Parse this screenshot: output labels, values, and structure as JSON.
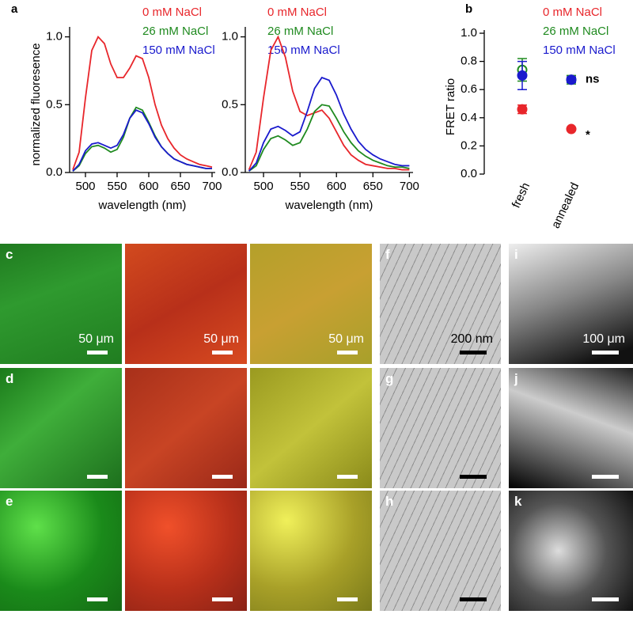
{
  "panels": [
    "a",
    "b"
  ],
  "chart_data": [
    {
      "type": "line",
      "xlabel": "wavelength (nm)",
      "ylabel": "normalized fluoresence",
      "x": [
        480,
        490,
        500,
        510,
        520,
        530,
        540,
        550,
        560,
        570,
        580,
        590,
        600,
        610,
        620,
        630,
        640,
        650,
        660,
        670,
        680,
        690,
        700
      ],
      "xlim": [
        475,
        705
      ],
      "xticks": [
        500,
        550,
        600,
        650,
        700
      ],
      "ylim": [
        0,
        1.05
      ],
      "yticks": [
        {
          "value": 0,
          "label": "0.0"
        },
        0.5,
        {
          "value": 1,
          "label": "1.0"
        }
      ],
      "series": [
        {
          "name": "0 mM NaCl",
          "color": "#e8262b",
          "values": [
            0.02,
            0.15,
            0.55,
            0.9,
            1.0,
            0.95,
            0.8,
            0.7,
            0.7,
            0.77,
            0.86,
            0.84,
            0.7,
            0.5,
            0.35,
            0.25,
            0.18,
            0.13,
            0.1,
            0.08,
            0.06,
            0.05,
            0.04
          ]
        },
        {
          "name": "26 mM NaCl",
          "color": "#1f8a1f",
          "values": [
            0.01,
            0.05,
            0.14,
            0.19,
            0.2,
            0.18,
            0.15,
            0.17,
            0.26,
            0.4,
            0.48,
            0.46,
            0.37,
            0.27,
            0.19,
            0.14,
            0.1,
            0.08,
            0.06,
            0.05,
            0.04,
            0.03,
            0.03
          ]
        },
        {
          "name": "150 mM NaCl",
          "color": "#1a1acd",
          "values": [
            0.01,
            0.06,
            0.16,
            0.21,
            0.22,
            0.2,
            0.18,
            0.2,
            0.28,
            0.4,
            0.46,
            0.44,
            0.36,
            0.26,
            0.19,
            0.14,
            0.1,
            0.08,
            0.06,
            0.05,
            0.04,
            0.03,
            0.03
          ]
        }
      ]
    },
    {
      "type": "line",
      "xlabel": "wavelength (nm)",
      "x": [
        480,
        490,
        500,
        510,
        520,
        530,
        540,
        550,
        560,
        570,
        580,
        590,
        600,
        610,
        620,
        630,
        640,
        650,
        660,
        670,
        680,
        690,
        700
      ],
      "xlim": [
        475,
        705
      ],
      "xticks": [
        500,
        550,
        600,
        650,
        700
      ],
      "ylim": [
        0,
        1.05
      ],
      "yticks": [
        {
          "value": 0,
          "label": "0.0"
        },
        0.5,
        {
          "value": 1,
          "label": "1.0"
        }
      ],
      "series": [
        {
          "name": "0 mM NaCl",
          "color": "#e8262b",
          "values": [
            0.02,
            0.15,
            0.55,
            0.9,
            1.0,
            0.85,
            0.6,
            0.45,
            0.42,
            0.44,
            0.46,
            0.4,
            0.3,
            0.2,
            0.13,
            0.09,
            0.06,
            0.05,
            0.04,
            0.03,
            0.03,
            0.02,
            0.02
          ]
        },
        {
          "name": "26 mM NaCl",
          "color": "#1f8a1f",
          "values": [
            0.01,
            0.05,
            0.17,
            0.25,
            0.27,
            0.24,
            0.2,
            0.22,
            0.32,
            0.45,
            0.5,
            0.49,
            0.4,
            0.3,
            0.22,
            0.16,
            0.12,
            0.09,
            0.07,
            0.05,
            0.04,
            0.04,
            0.03
          ]
        },
        {
          "name": "150 mM NaCl",
          "color": "#1a1acd",
          "values": [
            0.01,
            0.07,
            0.22,
            0.32,
            0.34,
            0.31,
            0.27,
            0.3,
            0.45,
            0.62,
            0.7,
            0.68,
            0.57,
            0.43,
            0.32,
            0.23,
            0.17,
            0.13,
            0.1,
            0.08,
            0.06,
            0.05,
            0.05
          ]
        }
      ]
    },
    {
      "type": "scatter",
      "ylabel": "FRET ratio",
      "categories": [
        "fresh",
        "annealed"
      ],
      "ylim": [
        0,
        1
      ],
      "yticks": [
        {
          "value": 0,
          "label": "0.0"
        },
        0.2,
        0.4,
        0.6,
        0.8,
        {
          "value": 1,
          "label": "1.0"
        }
      ],
      "annotations": [
        "ns",
        "*"
      ],
      "series": [
        {
          "name": "0 mM NaCl",
          "color": "#e8262b",
          "values": [
            0.46,
            0.32
          ],
          "errors": [
            0.03,
            0.01
          ]
        },
        {
          "name": "26 mM NaCl",
          "color": "#1f8a1f",
          "values": [
            0.74,
            0.67
          ],
          "errors": [
            0.08,
            0.03
          ]
        },
        {
          "name": "150 mM NaCl",
          "color": "#1a1acd",
          "values": [
            0.7,
            0.67
          ],
          "errors": [
            0.1,
            0.02
          ]
        }
      ]
    }
  ],
  "images": [
    {
      "label": "c",
      "scale": "50 μm"
    },
    {
      "label": "d"
    },
    {
      "label": "e"
    }
  ],
  "tem": [
    {
      "label": "f",
      "scale": "200 nm"
    },
    {
      "label": "g"
    },
    {
      "label": "h"
    }
  ],
  "gray": [
    {
      "label": "i",
      "scale": "100 μm"
    },
    {
      "label": "j"
    },
    {
      "label": "k"
    }
  ]
}
